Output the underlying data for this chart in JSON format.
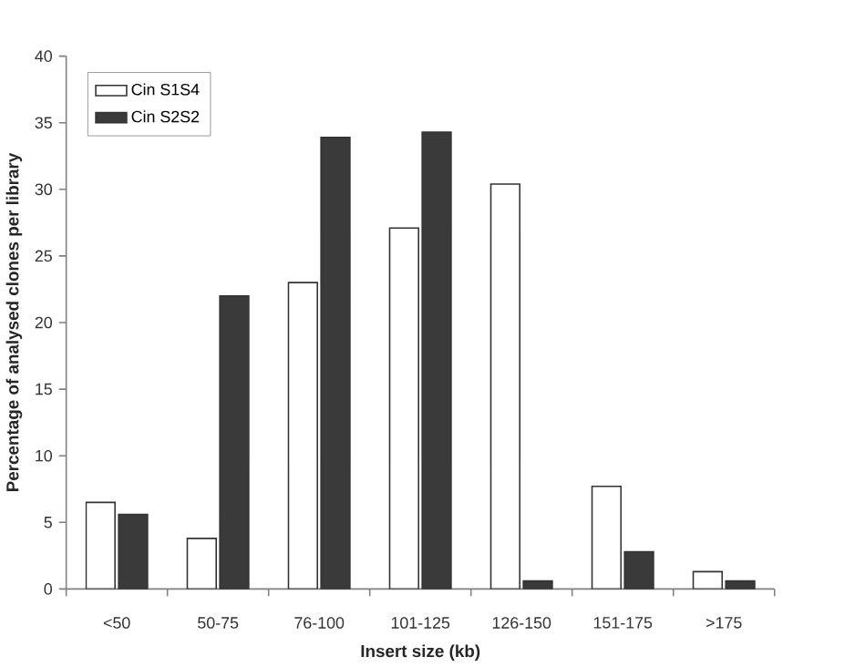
{
  "chart_data": {
    "type": "bar",
    "xlabel": "Insert size (kb)",
    "ylabel": "Percentage of analysed clones per library",
    "categories": [
      "<50",
      "50-75",
      "76-100",
      "101-125",
      "126-150",
      "151-175",
      ">175"
    ],
    "series": [
      {
        "name": "Cin S1S4",
        "color": "#ffffff",
        "values": [
          6.5,
          3.8,
          23,
          27.1,
          30.4,
          7.7,
          1.3
        ]
      },
      {
        "name": "Cin S2S2",
        "color": "#3a3a3a",
        "values": [
          5.6,
          22,
          33.9,
          34.3,
          0.6,
          2.8,
          0.6
        ]
      }
    ],
    "ylim": [
      0,
      40
    ],
    "yticks": [
      0,
      5,
      10,
      15,
      20,
      25,
      30,
      35,
      40
    ],
    "grid": false,
    "legend": "top left"
  }
}
